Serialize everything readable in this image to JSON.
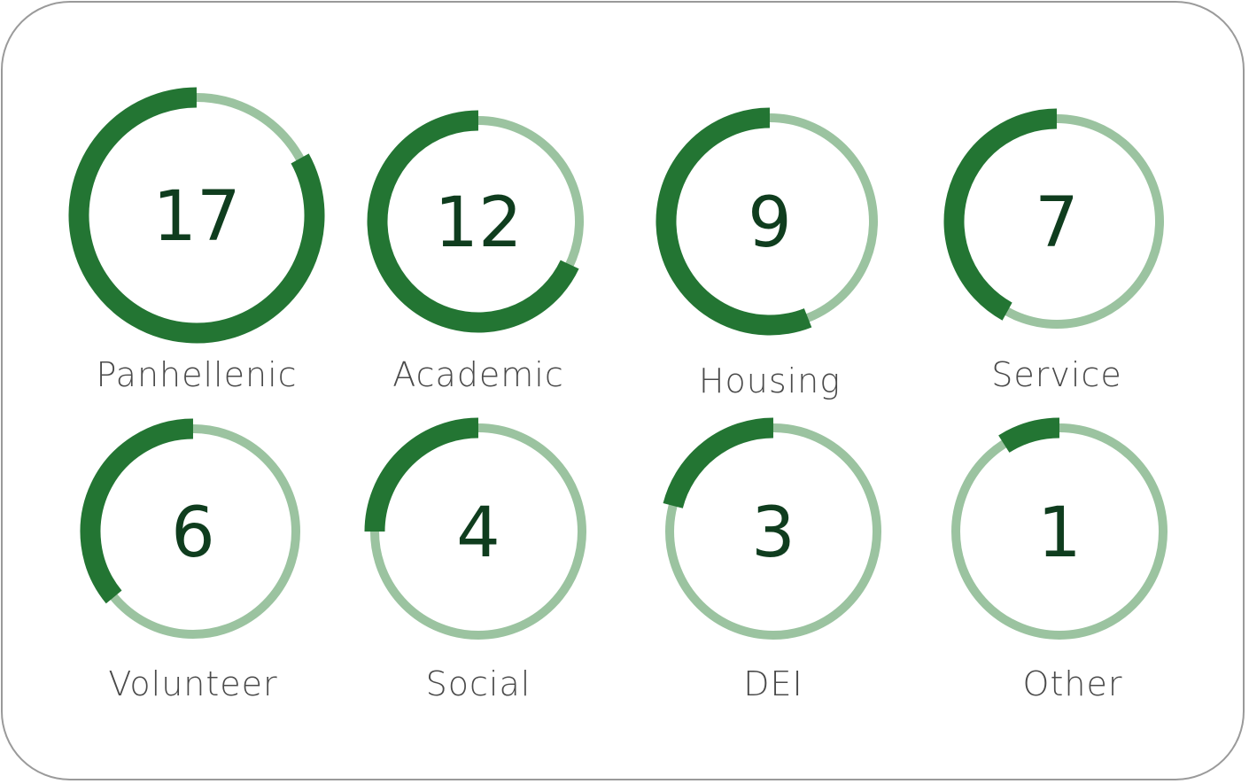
{
  "chart_data": {
    "type": "radial-gauge",
    "colors": {
      "fill": "#237533",
      "track": "#9bc3a0",
      "value_text": "#0f3d1e",
      "label_text": "#4a4a4a"
    },
    "items": [
      {
        "label": "Panhellenic",
        "value": "17",
        "fill_fraction": 0.83
      },
      {
        "label": "Academic",
        "value": "12",
        "fill_fraction": 0.68
      },
      {
        "label": "Housing",
        "value": "9",
        "fill_fraction": 0.56
      },
      {
        "label": "Service",
        "value": "7",
        "fill_fraction": 0.42
      },
      {
        "label": "Volunteer",
        "value": "6",
        "fill_fraction": 0.36
      },
      {
        "label": "Social",
        "value": "4",
        "fill_fraction": 0.25
      },
      {
        "label": "DEI",
        "value": "3",
        "fill_fraction": 0.21
      },
      {
        "label": "Other",
        "value": "1",
        "fill_fraction": 0.09
      }
    ]
  }
}
